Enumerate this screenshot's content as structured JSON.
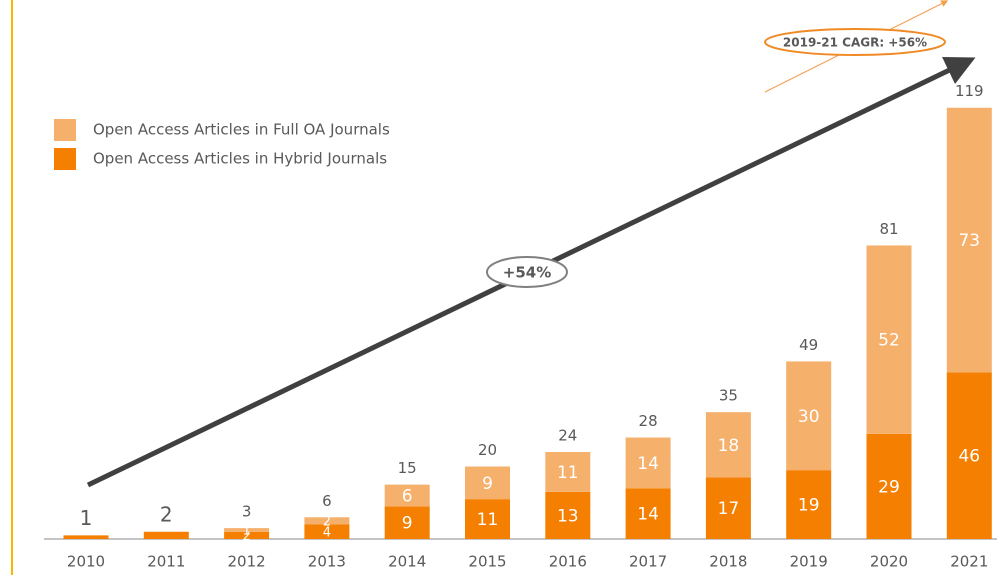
{
  "chart_data": {
    "type": "stacked_bar",
    "categories": [
      "2010",
      "2011",
      "2012",
      "2013",
      "2014",
      "2015",
      "2016",
      "2017",
      "2018",
      "2019",
      "2020",
      "2021"
    ],
    "series": [
      {
        "name": "Open Access Articles in Full OA Journals",
        "color": "#f5b06c",
        "values": [
          0,
          0,
          1,
          2,
          6,
          9,
          11,
          14,
          18,
          30,
          52,
          73
        ]
      },
      {
        "name": "Open Access Articles in Hybrid Journals",
        "color": "#f57f00",
        "values": [
          1,
          2,
          2,
          4,
          9,
          11,
          13,
          14,
          17,
          19,
          29,
          46
        ]
      }
    ],
    "totals": [
      1,
      2,
      3,
      6,
      15,
      20,
      24,
      28,
      35,
      49,
      81,
      119
    ],
    "ylim": [
      0,
      125
    ],
    "annotations": [
      "+54%",
      "2019-21 CAGR: +56%"
    ]
  }
}
